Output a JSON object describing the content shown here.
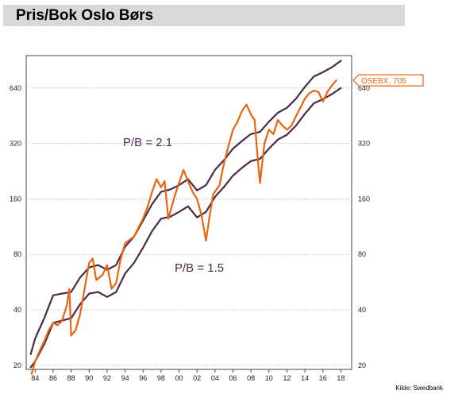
{
  "title": "Pris/Bok Oslo Børs",
  "source": "Kilde: Swedbank",
  "colors": {
    "osebx": "#e8650f",
    "band": "#4b2a4c",
    "grid": "#b0b0b0",
    "frame": "#444444",
    "title_bg": "#d9d9d9"
  },
  "chart_data": {
    "type": "line",
    "title": "Pris/Bok Oslo Børs",
    "xlabel": "",
    "ylabel": "",
    "y_scale": "log2",
    "ylim": [
      19,
      960
    ],
    "xlim": [
      1983.0,
      2019.2
    ],
    "x_ticks": [
      1984,
      1986,
      1988,
      1990,
      1992,
      1994,
      1996,
      1998,
      2000,
      2002,
      2004,
      2006,
      2008,
      2010,
      2012,
      2014,
      2016,
      2018
    ],
    "x_tick_labels": [
      "84",
      "86",
      "88",
      "90",
      "92",
      "94",
      "96",
      "98",
      "00",
      "02",
      "04",
      "06",
      "08",
      "10",
      "12",
      "14",
      "16",
      "18"
    ],
    "y_ticks": [
      20,
      40,
      80,
      160,
      320,
      640
    ],
    "y_tick_labels": [
      "20",
      "40",
      "80",
      "160",
      "320",
      "640"
    ],
    "grid": true,
    "annotations": [
      {
        "text": "P/B = 2.1",
        "series": "P/B = 2.1"
      },
      {
        "text": "P/B = 1.5",
        "series": "P/B = 1.5"
      }
    ],
    "series": [
      {
        "name": "OSEBX, 705",
        "values": [
          {
            "x": 1983.6,
            "y": 18
          },
          {
            "x": 1984.0,
            "y": 21
          },
          {
            "x": 1984.5,
            "y": 24
          },
          {
            "x": 1985.0,
            "y": 27
          },
          {
            "x": 1985.5,
            "y": 31
          },
          {
            "x": 1986.0,
            "y": 34
          },
          {
            "x": 1986.5,
            "y": 33
          },
          {
            "x": 1987.0,
            "y": 35
          },
          {
            "x": 1987.5,
            "y": 42
          },
          {
            "x": 1987.8,
            "y": 52
          },
          {
            "x": 1988.0,
            "y": 29
          },
          {
            "x": 1988.5,
            "y": 31
          },
          {
            "x": 1989.0,
            "y": 38
          },
          {
            "x": 1989.5,
            "y": 52
          },
          {
            "x": 1990.0,
            "y": 72
          },
          {
            "x": 1990.4,
            "y": 76
          },
          {
            "x": 1990.8,
            "y": 58
          },
          {
            "x": 1991.5,
            "y": 62
          },
          {
            "x": 1992.0,
            "y": 70
          },
          {
            "x": 1992.5,
            "y": 52
          },
          {
            "x": 1993.0,
            "y": 56
          },
          {
            "x": 1993.5,
            "y": 75
          },
          {
            "x": 1994.0,
            "y": 92
          },
          {
            "x": 1994.5,
            "y": 96
          },
          {
            "x": 1995.0,
            "y": 100
          },
          {
            "x": 1995.5,
            "y": 112
          },
          {
            "x": 1996.0,
            "y": 125
          },
          {
            "x": 1996.5,
            "y": 145
          },
          {
            "x": 1997.0,
            "y": 175
          },
          {
            "x": 1997.5,
            "y": 205
          },
          {
            "x": 1998.0,
            "y": 185
          },
          {
            "x": 1998.4,
            "y": 200
          },
          {
            "x": 1998.8,
            "y": 125
          },
          {
            "x": 1999.5,
            "y": 165
          },
          {
            "x": 2000.0,
            "y": 195
          },
          {
            "x": 2000.5,
            "y": 230
          },
          {
            "x": 2001.0,
            "y": 200
          },
          {
            "x": 2001.5,
            "y": 175
          },
          {
            "x": 2002.0,
            "y": 160
          },
          {
            "x": 2002.5,
            "y": 130
          },
          {
            "x": 2003.0,
            "y": 95
          },
          {
            "x": 2003.3,
            "y": 120
          },
          {
            "x": 2003.8,
            "y": 170
          },
          {
            "x": 2004.5,
            "y": 190
          },
          {
            "x": 2005.0,
            "y": 250
          },
          {
            "x": 2005.5,
            "y": 310
          },
          {
            "x": 2006.0,
            "y": 380
          },
          {
            "x": 2006.5,
            "y": 420
          },
          {
            "x": 2007.0,
            "y": 480
          },
          {
            "x": 2007.5,
            "y": 520
          },
          {
            "x": 2008.0,
            "y": 460
          },
          {
            "x": 2008.4,
            "y": 430
          },
          {
            "x": 2008.8,
            "y": 250
          },
          {
            "x": 2009.0,
            "y": 195
          },
          {
            "x": 2009.5,
            "y": 320
          },
          {
            "x": 2010.0,
            "y": 380
          },
          {
            "x": 2010.5,
            "y": 360
          },
          {
            "x": 2011.0,
            "y": 430
          },
          {
            "x": 2011.5,
            "y": 400
          },
          {
            "x": 2012.0,
            "y": 380
          },
          {
            "x": 2012.5,
            "y": 400
          },
          {
            "x": 2013.0,
            "y": 450
          },
          {
            "x": 2013.5,
            "y": 500
          },
          {
            "x": 2014.0,
            "y": 560
          },
          {
            "x": 2014.5,
            "y": 600
          },
          {
            "x": 2015.0,
            "y": 620
          },
          {
            "x": 2015.5,
            "y": 610
          },
          {
            "x": 2016.0,
            "y": 540
          },
          {
            "x": 2016.5,
            "y": 610
          },
          {
            "x": 2017.0,
            "y": 660
          },
          {
            "x": 2017.5,
            "y": 705
          }
        ]
      },
      {
        "name": "P/B = 2.1",
        "values": [
          {
            "x": 1983.5,
            "y": 23
          },
          {
            "x": 1984.0,
            "y": 28
          },
          {
            "x": 1985.0,
            "y": 36
          },
          {
            "x": 1986.0,
            "y": 48
          },
          {
            "x": 1987.0,
            "y": 49
          },
          {
            "x": 1988.0,
            "y": 50
          },
          {
            "x": 1989.0,
            "y": 60
          },
          {
            "x": 1990.0,
            "y": 68
          },
          {
            "x": 1991.0,
            "y": 70
          },
          {
            "x": 1992.0,
            "y": 66
          },
          {
            "x": 1993.0,
            "y": 70
          },
          {
            "x": 1994.0,
            "y": 88
          },
          {
            "x": 1995.0,
            "y": 100
          },
          {
            "x": 1996.0,
            "y": 122
          },
          {
            "x": 1997.0,
            "y": 150
          },
          {
            "x": 1998.0,
            "y": 175
          },
          {
            "x": 1999.0,
            "y": 180
          },
          {
            "x": 2000.0,
            "y": 190
          },
          {
            "x": 2001.0,
            "y": 205
          },
          {
            "x": 2002.0,
            "y": 178
          },
          {
            "x": 2003.0,
            "y": 190
          },
          {
            "x": 2004.0,
            "y": 230
          },
          {
            "x": 2005.0,
            "y": 260
          },
          {
            "x": 2006.0,
            "y": 300
          },
          {
            "x": 2007.0,
            "y": 330
          },
          {
            "x": 2008.0,
            "y": 360
          },
          {
            "x": 2009.0,
            "y": 370
          },
          {
            "x": 2010.0,
            "y": 420
          },
          {
            "x": 2011.0,
            "y": 470
          },
          {
            "x": 2012.0,
            "y": 500
          },
          {
            "x": 2013.0,
            "y": 560
          },
          {
            "x": 2014.0,
            "y": 650
          },
          {
            "x": 2015.0,
            "y": 740
          },
          {
            "x": 2016.0,
            "y": 780
          },
          {
            "x": 2017.0,
            "y": 830
          },
          {
            "x": 2018.0,
            "y": 900
          }
        ]
      },
      {
        "name": "P/B = 1.5",
        "values": [
          {
            "x": 1983.5,
            "y": 19.5
          },
          {
            "x": 1984.0,
            "y": 21
          },
          {
            "x": 1985.0,
            "y": 26
          },
          {
            "x": 1986.0,
            "y": 34
          },
          {
            "x": 1987.0,
            "y": 35
          },
          {
            "x": 1988.0,
            "y": 36
          },
          {
            "x": 1989.0,
            "y": 43
          },
          {
            "x": 1990.0,
            "y": 49
          },
          {
            "x": 1991.0,
            "y": 50
          },
          {
            "x": 1992.0,
            "y": 47
          },
          {
            "x": 1993.0,
            "y": 50
          },
          {
            "x": 1994.0,
            "y": 63
          },
          {
            "x": 1995.0,
            "y": 72
          },
          {
            "x": 1996.0,
            "y": 87
          },
          {
            "x": 1997.0,
            "y": 107
          },
          {
            "x": 1998.0,
            "y": 125
          },
          {
            "x": 1999.0,
            "y": 128
          },
          {
            "x": 2000.0,
            "y": 136
          },
          {
            "x": 2001.0,
            "y": 146
          },
          {
            "x": 2002.0,
            "y": 127
          },
          {
            "x": 2003.0,
            "y": 136
          },
          {
            "x": 2004.0,
            "y": 164
          },
          {
            "x": 2005.0,
            "y": 186
          },
          {
            "x": 2006.0,
            "y": 214
          },
          {
            "x": 2007.0,
            "y": 236
          },
          {
            "x": 2008.0,
            "y": 257
          },
          {
            "x": 2009.0,
            "y": 264
          },
          {
            "x": 2010.0,
            "y": 300
          },
          {
            "x": 2011.0,
            "y": 336
          },
          {
            "x": 2012.0,
            "y": 357
          },
          {
            "x": 2013.0,
            "y": 400
          },
          {
            "x": 2014.0,
            "y": 464
          },
          {
            "x": 2015.0,
            "y": 529
          },
          {
            "x": 2016.0,
            "y": 557
          },
          {
            "x": 2017.0,
            "y": 593
          },
          {
            "x": 2018.0,
            "y": 640
          }
        ]
      }
    ]
  }
}
